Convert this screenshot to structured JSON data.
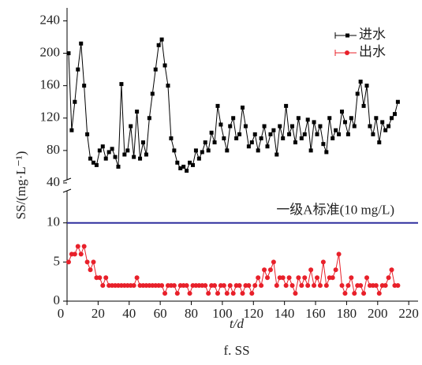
{
  "chart_data": [
    {
      "type": "line",
      "ylabel": "SS/(mg·L⁻¹)",
      "legend": "upper right",
      "x": [
        1,
        3,
        5,
        7,
        9,
        11,
        13,
        15,
        17,
        19,
        21,
        23,
        25,
        27,
        29,
        31,
        33,
        35,
        37,
        39,
        41,
        43,
        45,
        47,
        49,
        51,
        53,
        55,
        57,
        59,
        61,
        63,
        65,
        67,
        69,
        71,
        73,
        75,
        77,
        79,
        81,
        83,
        85,
        87,
        89,
        91,
        93,
        95,
        97,
        99,
        101,
        103,
        105,
        107,
        109,
        111,
        113,
        115,
        117,
        119,
        121,
        123,
        125,
        127,
        129,
        131,
        133,
        135,
        137,
        139,
        141,
        143,
        145,
        147,
        149,
        151,
        153,
        155,
        157,
        159,
        161,
        163,
        165,
        167,
        169,
        171,
        173,
        175,
        177,
        179,
        181,
        183,
        185,
        187,
        189,
        191,
        193,
        195,
        197,
        199,
        201,
        203,
        205,
        207,
        209,
        211,
        213
      ],
      "series": [
        {
          "name": "进水",
          "color": "#000000",
          "marker": "square",
          "values": [
            200,
            105,
            140,
            180,
            212,
            160,
            100,
            70,
            65,
            62,
            80,
            85,
            70,
            78,
            82,
            72,
            60,
            162,
            75,
            80,
            110,
            72,
            128,
            70,
            90,
            75,
            120,
            150,
            180,
            210,
            217,
            185,
            160,
            95,
            80,
            65,
            58,
            60,
            55,
            65,
            62,
            80,
            70,
            78,
            90,
            80,
            102,
            90,
            135,
            112,
            95,
            80,
            110,
            120,
            95,
            100,
            133,
            110,
            85,
            90,
            100,
            80,
            95,
            110,
            85,
            100,
            105,
            75,
            110,
            95,
            135,
            100,
            110,
            90,
            120,
            95,
            100,
            118,
            80,
            115,
            100,
            110,
            88,
            78,
            120,
            95,
            105,
            100,
            128,
            115,
            100,
            120,
            110,
            150,
            165,
            135,
            160,
            110,
            100,
            120,
            90,
            115,
            105,
            110,
            120,
            125,
            140
          ]
        }
      ],
      "xlim": [
        0,
        226
      ],
      "ylim": [
        40,
        256
      ],
      "yticks": [
        40,
        80,
        120,
        160,
        200,
        240
      ]
    },
    {
      "type": "line",
      "xlabel": "t/d",
      "x": [
        1,
        3,
        5,
        7,
        9,
        11,
        13,
        15,
        17,
        19,
        21,
        23,
        25,
        27,
        29,
        31,
        33,
        35,
        37,
        39,
        41,
        43,
        45,
        47,
        49,
        51,
        53,
        55,
        57,
        59,
        61,
        63,
        65,
        67,
        69,
        71,
        73,
        75,
        77,
        79,
        81,
        83,
        85,
        87,
        89,
        91,
        93,
        95,
        97,
        99,
        101,
        103,
        105,
        107,
        109,
        111,
        113,
        115,
        117,
        119,
        121,
        123,
        125,
        127,
        129,
        131,
        133,
        135,
        137,
        139,
        141,
        143,
        145,
        147,
        149,
        151,
        153,
        155,
        157,
        159,
        161,
        163,
        165,
        167,
        169,
        171,
        173,
        175,
        177,
        179,
        181,
        183,
        185,
        187,
        189,
        191,
        193,
        195,
        197,
        199,
        201,
        203,
        205,
        207,
        209,
        211,
        213
      ],
      "series": [
        {
          "name": "出水",
          "color": "#e8202a",
          "marker": "circle",
          "values": [
            5,
            6,
            6,
            7,
            6,
            7,
            5,
            4,
            5,
            3,
            3,
            2,
            3,
            2,
            2,
            2,
            2,
            2,
            2,
            2,
            2,
            2,
            3,
            2,
            2,
            2,
            2,
            2,
            2,
            2,
            2,
            1,
            2,
            2,
            2,
            1,
            2,
            2,
            2,
            1,
            2,
            2,
            2,
            2,
            2,
            1,
            2,
            2,
            1,
            2,
            2,
            1,
            2,
            1,
            2,
            2,
            1,
            2,
            2,
            1,
            2,
            3,
            2,
            4,
            3,
            4,
            5,
            2,
            3,
            3,
            2,
            3,
            2,
            1,
            3,
            2,
            3,
            2,
            4,
            2,
            3,
            2,
            5,
            2,
            3,
            3,
            4,
            6,
            2,
            1,
            2,
            3,
            1,
            2,
            2,
            1,
            3,
            2,
            2,
            2,
            1,
            2,
            2,
            3,
            4,
            2,
            2
          ]
        }
      ],
      "reference_line": {
        "value": 10,
        "label": "一级A标准(10 mg/L)",
        "color": "#2e2e9e"
      },
      "xlim": [
        0,
        226
      ],
      "ylim": [
        0,
        14
      ],
      "yticks": [
        0,
        5,
        10
      ],
      "xticks": [
        0,
        20,
        40,
        60,
        80,
        100,
        120,
        140,
        160,
        180,
        200,
        220
      ]
    }
  ],
  "caption": "f. SS"
}
